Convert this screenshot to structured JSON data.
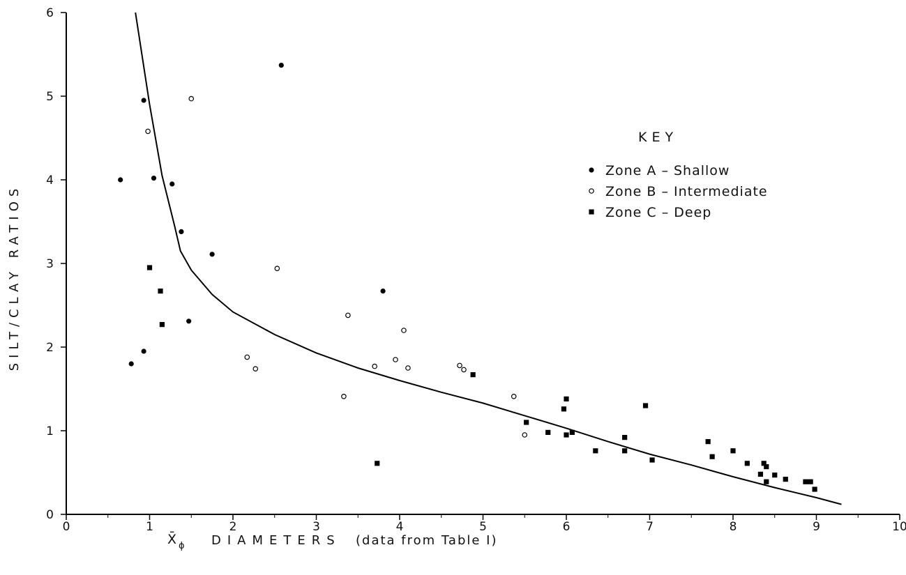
{
  "chart_data": {
    "type": "scatter",
    "title": "",
    "xlabel": {
      "prefix": "X̄",
      "subscript": "ϕ",
      "main": "DIAMETERS",
      "note": "(data  from  Table  I)"
    },
    "ylabel": "SILT/CLAY  RATIOS",
    "xlim": [
      0,
      10
    ],
    "ylim": [
      0,
      6
    ],
    "x_ticks": [
      "0",
      "1",
      "2",
      "3",
      "4",
      "5",
      "6",
      "7",
      "8",
      "9",
      "10"
    ],
    "y_ticks": [
      "0",
      "1",
      "2",
      "3",
      "4",
      "5",
      "6"
    ],
    "grid": false,
    "legend": {
      "title": "KEY",
      "position": "right",
      "entries": [
        {
          "label": "Zone  A  – Shallow",
          "marker": "filled-circle"
        },
        {
          "label": "Zone  B  – Intermediate",
          "marker": "open-circle"
        },
        {
          "label": "Zone  C  – Deep",
          "marker": "filled-square"
        }
      ]
    },
    "series": [
      {
        "name": "Zone  A  – Shallow",
        "marker": "filled-circle",
        "points": [
          [
            0.65,
            4.0
          ],
          [
            0.78,
            1.8
          ],
          [
            0.93,
            4.95
          ],
          [
            0.93,
            1.95
          ],
          [
            1.05,
            4.02
          ],
          [
            1.27,
            3.95
          ],
          [
            1.38,
            3.38
          ],
          [
            1.47,
            2.31
          ],
          [
            1.75,
            3.11
          ],
          [
            2.58,
            5.37
          ],
          [
            3.8,
            2.67
          ]
        ]
      },
      {
        "name": "Zone  B  – Intermediate",
        "marker": "open-circle",
        "points": [
          [
            0.98,
            4.58
          ],
          [
            1.5,
            4.97
          ],
          [
            2.17,
            1.88
          ],
          [
            2.27,
            1.74
          ],
          [
            2.53,
            2.94
          ],
          [
            3.33,
            1.41
          ],
          [
            3.38,
            2.38
          ],
          [
            3.7,
            1.77
          ],
          [
            3.95,
            1.85
          ],
          [
            4.05,
            2.2
          ],
          [
            4.1,
            1.75
          ],
          [
            4.72,
            1.78
          ],
          [
            4.77,
            1.73
          ],
          [
            5.37,
            1.41
          ],
          [
            5.5,
            0.95
          ]
        ]
      },
      {
        "name": "Zone  C  – Deep",
        "marker": "filled-square",
        "points": [
          [
            1.0,
            2.95
          ],
          [
            1.13,
            2.67
          ],
          [
            1.15,
            2.27
          ],
          [
            3.73,
            0.61
          ],
          [
            4.88,
            1.67
          ],
          [
            5.52,
            1.1
          ],
          [
            5.78,
            0.98
          ],
          [
            5.97,
            1.26
          ],
          [
            6.0,
            1.38
          ],
          [
            6.0,
            0.95
          ],
          [
            6.07,
            0.98
          ],
          [
            6.35,
            0.76
          ],
          [
            6.7,
            0.92
          ],
          [
            6.7,
            0.76
          ],
          [
            6.95,
            1.3
          ],
          [
            7.03,
            0.65
          ],
          [
            7.7,
            0.87
          ],
          [
            7.75,
            0.69
          ],
          [
            8.0,
            0.76
          ],
          [
            8.17,
            0.61
          ],
          [
            8.33,
            0.48
          ],
          [
            8.37,
            0.61
          ],
          [
            8.4,
            0.57
          ],
          [
            8.4,
            0.39
          ],
          [
            8.5,
            0.47
          ],
          [
            8.63,
            0.42
          ],
          [
            8.87,
            0.39
          ],
          [
            8.93,
            0.39
          ],
          [
            8.98,
            0.3
          ]
        ]
      }
    ],
    "trend_line": {
      "points": [
        [
          0.83,
          6.0
        ],
        [
          1.0,
          4.9
        ],
        [
          1.15,
          4.05
        ],
        [
          1.3,
          3.45
        ],
        [
          1.37,
          3.15
        ],
        [
          1.5,
          2.92
        ],
        [
          1.75,
          2.63
        ],
        [
          2.0,
          2.42
        ],
        [
          2.5,
          2.15
        ],
        [
          3.0,
          1.93
        ],
        [
          3.5,
          1.75
        ],
        [
          4.0,
          1.6
        ],
        [
          4.5,
          1.46
        ],
        [
          5.0,
          1.33
        ],
        [
          5.5,
          1.18
        ],
        [
          6.0,
          1.03
        ],
        [
          6.5,
          0.87
        ],
        [
          7.0,
          0.72
        ],
        [
          7.5,
          0.59
        ],
        [
          8.0,
          0.45
        ],
        [
          8.5,
          0.32
        ],
        [
          9.0,
          0.2
        ],
        [
          9.3,
          0.12
        ]
      ]
    }
  }
}
